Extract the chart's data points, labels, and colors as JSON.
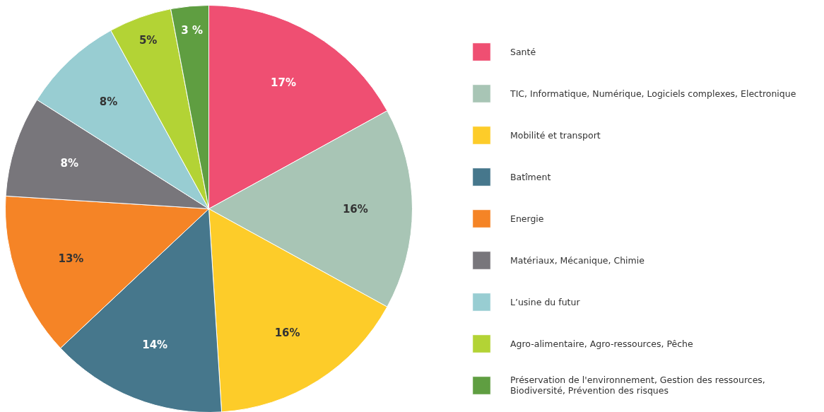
{
  "chart_data": {
    "type": "pie",
    "categories": [
      "Santé",
      "TIC, Informatique, Numérique, Logiciels complexes, Electronique",
      "Mobilité et transport",
      "Batîment",
      "Energie",
      "Matériaux, Mécanique, Chimie",
      "L’usine du futur",
      "Agro-alimentaire, Agro-ressources, Pêche",
      "Préservation de l'environnement, Gestion des ressources,\nBiodiversité, Prévention des risques"
    ],
    "values": [
      17,
      16,
      16,
      14,
      13,
      8,
      8,
      5,
      3
    ],
    "value_labels": [
      "17%",
      "16%",
      "16%",
      "14%",
      "13%",
      "8%",
      "8%",
      "5%",
      "3 %"
    ],
    "colors": [
      "#ef4f72",
      "#a8c5b5",
      "#fdcc29",
      "#46778c",
      "#f58426",
      "#78767b",
      "#98cdd2",
      "#b3d335",
      "#5f9e41"
    ],
    "legend": "right"
  }
}
